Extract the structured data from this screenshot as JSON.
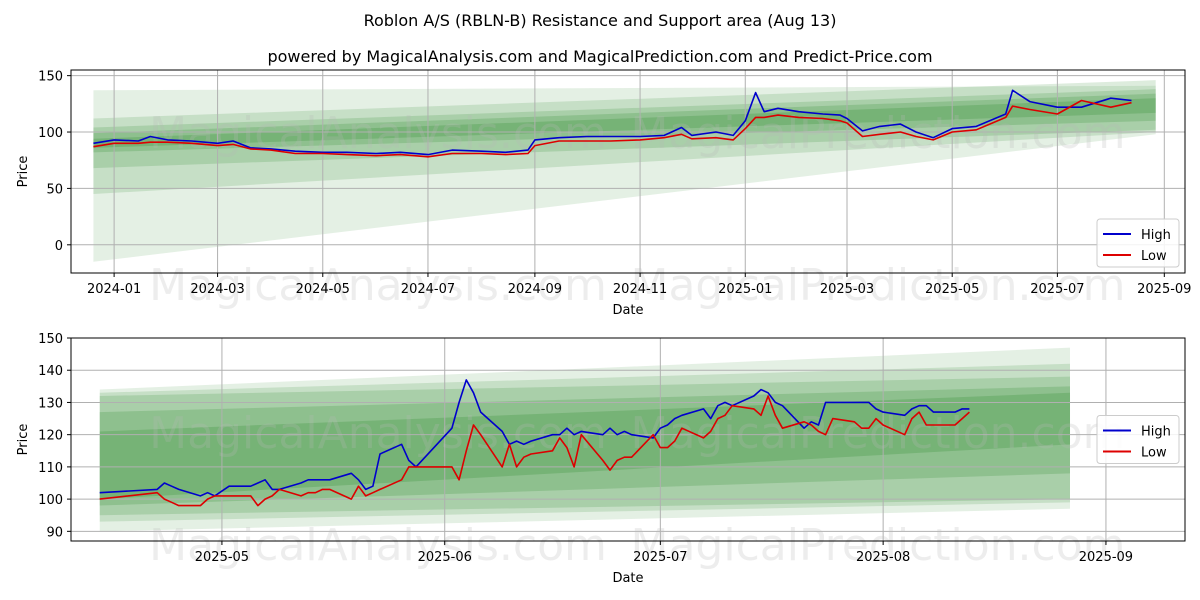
{
  "title": "Roblon A/S (RBLN-B) Resistance and Support area (Aug 13)",
  "subtitle": "powered by MagicalAnalysis.com and MagicalPrediction.com and Predict-Price.com",
  "watermarks": [
    "MagicalAnalysis.com",
    "MagicalPrediction.com"
  ],
  "colors": {
    "high": "#0000cc",
    "low": "#dd0000",
    "band": "#2e8b2e",
    "grid": "#b0b0b0"
  },
  "chart_data": [
    {
      "type": "line",
      "xlabel": "Date",
      "ylabel": "Price",
      "ylim": [
        -25,
        155
      ],
      "xlim": [
        "2023-12-07",
        "2025-09-13"
      ],
      "yticks": [
        0,
        50,
        100,
        150
      ],
      "xticks": [
        "2024-01",
        "2024-03",
        "2024-05",
        "2024-07",
        "2024-09",
        "2024-11",
        "2025-01",
        "2025-03",
        "2025-05",
        "2025-07",
        "2025-09"
      ],
      "grid": true,
      "legend": "bottom-right",
      "bands": [
        {
          "x": [
            "2023-12-20",
            "2025-08-27"
          ],
          "upper": [
            137,
            141
          ],
          "lower": [
            -15,
            98
          ]
        },
        {
          "x": [
            "2023-12-20",
            "2025-08-27"
          ],
          "upper": [
            112,
            146
          ],
          "lower": [
            45,
            100
          ]
        },
        {
          "x": [
            "2023-12-20",
            "2025-08-27"
          ],
          "upper": [
            104,
            138
          ],
          "lower": [
            68,
            102
          ]
        },
        {
          "x": [
            "2023-12-20",
            "2025-08-27"
          ],
          "upper": [
            99,
            134
          ],
          "lower": [
            82,
            110
          ]
        },
        {
          "x": [
            "2023-12-20",
            "2025-08-27"
          ],
          "upper": [
            94,
            130
          ],
          "lower": [
            86,
            117
          ]
        }
      ],
      "series": [
        {
          "name": "High",
          "x": [
            "2023-12-20",
            "2024-01-01",
            "2024-01-15",
            "2024-01-22",
            "2024-02-01",
            "2024-02-15",
            "2024-03-01",
            "2024-03-10",
            "2024-03-20",
            "2024-04-01",
            "2024-04-15",
            "2024-05-01",
            "2024-05-15",
            "2024-06-01",
            "2024-06-15",
            "2024-07-01",
            "2024-07-15",
            "2024-08-01",
            "2024-08-15",
            "2024-08-28",
            "2024-09-01",
            "2024-09-15",
            "2024-10-01",
            "2024-10-15",
            "2024-11-01",
            "2024-11-15",
            "2024-11-25",
            "2024-12-01",
            "2024-12-15",
            "2024-12-25",
            "2025-01-01",
            "2025-01-07",
            "2025-01-12",
            "2025-01-20",
            "2025-02-01",
            "2025-02-15",
            "2025-02-25",
            "2025-03-01",
            "2025-03-10",
            "2025-03-20",
            "2025-04-01",
            "2025-04-10",
            "2025-04-20",
            "2025-05-01",
            "2025-05-15",
            "2025-06-01",
            "2025-06-05",
            "2025-06-15",
            "2025-07-01",
            "2025-07-15",
            "2025-08-01",
            "2025-08-13"
          ],
          "values": [
            90,
            93,
            92,
            96,
            93,
            92,
            90,
            92,
            86,
            85,
            83,
            82,
            82,
            81,
            82,
            80,
            84,
            83,
            82,
            84,
            93,
            95,
            96,
            96,
            96,
            97,
            104,
            97,
            100,
            97,
            110,
            135,
            118,
            121,
            118,
            116,
            115,
            112,
            101,
            105,
            107,
            100,
            95,
            103,
            105,
            116,
            137,
            127,
            122,
            122,
            130,
            128
          ]
        },
        {
          "name": "Low",
          "x": [
            "2023-12-20",
            "2024-01-01",
            "2024-01-15",
            "2024-01-22",
            "2024-02-01",
            "2024-02-15",
            "2024-03-01",
            "2024-03-10",
            "2024-03-20",
            "2024-04-01",
            "2024-04-15",
            "2024-05-01",
            "2024-05-15",
            "2024-06-01",
            "2024-06-15",
            "2024-07-01",
            "2024-07-15",
            "2024-08-01",
            "2024-08-15",
            "2024-08-28",
            "2024-09-01",
            "2024-09-15",
            "2024-10-01",
            "2024-10-15",
            "2024-11-01",
            "2024-11-15",
            "2024-11-25",
            "2024-12-01",
            "2024-12-15",
            "2024-12-25",
            "2025-01-01",
            "2025-01-07",
            "2025-01-12",
            "2025-01-20",
            "2025-02-01",
            "2025-02-15",
            "2025-02-25",
            "2025-03-01",
            "2025-03-10",
            "2025-03-20",
            "2025-04-01",
            "2025-04-10",
            "2025-04-20",
            "2025-05-01",
            "2025-05-15",
            "2025-06-01",
            "2025-06-05",
            "2025-06-15",
            "2025-07-01",
            "2025-07-15",
            "2025-08-01",
            "2025-08-13"
          ],
          "values": [
            87,
            90,
            90,
            91,
            91,
            90,
            88,
            89,
            85,
            84,
            81,
            81,
            80,
            79,
            80,
            78,
            81,
            81,
            80,
            81,
            88,
            92,
            92,
            92,
            93,
            95,
            98,
            94,
            95,
            93,
            103,
            113,
            113,
            115,
            113,
            112,
            110,
            108,
            96,
            98,
            100,
            96,
            93,
            100,
            102,
            113,
            123,
            120,
            116,
            128,
            122,
            126
          ]
        }
      ]
    },
    {
      "type": "line",
      "xlabel": "Date",
      "ylabel": "Price",
      "ylim": [
        87,
        150
      ],
      "xlim": [
        "2025-04-10",
        "2025-09-12"
      ],
      "yticks": [
        90,
        100,
        110,
        120,
        130,
        140,
        150
      ],
      "xticks": [
        "2025-05",
        "2025-06",
        "2025-07",
        "2025-08",
        "2025-09"
      ],
      "grid": true,
      "legend": "center-right",
      "bands": [
        {
          "x": [
            "2025-04-14",
            "2025-08-27"
          ],
          "upper": [
            134,
            147
          ],
          "lower": [
            90,
            97
          ]
        },
        {
          "x": [
            "2025-04-14",
            "2025-08-27"
          ],
          "upper": [
            133,
            142
          ],
          "lower": [
            93,
            99
          ]
        },
        {
          "x": [
            "2025-04-14",
            "2025-08-27"
          ],
          "upper": [
            132,
            138
          ],
          "lower": [
            95,
            100
          ]
        },
        {
          "x": [
            "2025-04-14",
            "2025-08-27"
          ],
          "upper": [
            127,
            135
          ],
          "lower": [
            98,
            108
          ]
        },
        {
          "x": [
            "2025-04-14",
            "2025-08-27"
          ],
          "upper": [
            121,
            133
          ],
          "lower": [
            100,
            117
          ]
        }
      ],
      "series": [
        {
          "name": "High",
          "x": [
            "2025-04-14",
            "2025-04-22",
            "2025-04-23",
            "2025-04-24",
            "2025-04-25",
            "2025-04-28",
            "2025-04-29",
            "2025-04-30",
            "2025-05-02",
            "2025-05-05",
            "2025-05-06",
            "2025-05-07",
            "2025-05-08",
            "2025-05-09",
            "2025-05-12",
            "2025-05-13",
            "2025-05-14",
            "2025-05-15",
            "2025-05-16",
            "2025-05-19",
            "2025-05-20",
            "2025-05-21",
            "2025-05-22",
            "2025-05-23",
            "2025-05-26",
            "2025-05-27",
            "2025-05-28",
            "2025-06-02",
            "2025-06-03",
            "2025-06-04",
            "2025-06-05",
            "2025-06-06",
            "2025-06-09",
            "2025-06-10",
            "2025-06-11",
            "2025-06-12",
            "2025-06-13",
            "2025-06-16",
            "2025-06-17",
            "2025-06-18",
            "2025-06-19",
            "2025-06-20",
            "2025-06-23",
            "2025-06-24",
            "2025-06-25",
            "2025-06-26",
            "2025-06-27",
            "2025-06-30",
            "2025-07-01",
            "2025-07-02",
            "2025-07-03",
            "2025-07-04",
            "2025-07-07",
            "2025-07-08",
            "2025-07-09",
            "2025-07-10",
            "2025-07-11",
            "2025-07-14",
            "2025-07-15",
            "2025-07-16",
            "2025-07-17",
            "2025-07-18",
            "2025-07-21",
            "2025-07-22",
            "2025-07-23",
            "2025-07-24",
            "2025-07-25",
            "2025-07-28",
            "2025-07-29",
            "2025-07-30",
            "2025-07-31",
            "2025-08-01",
            "2025-08-04",
            "2025-08-05",
            "2025-08-06",
            "2025-08-07",
            "2025-08-08",
            "2025-08-11",
            "2025-08-12",
            "2025-08-13"
          ],
          "values": [
            102,
            103,
            105,
            104,
            103,
            101,
            102,
            101,
            104,
            104,
            105,
            106,
            103,
            103,
            105,
            106,
            106,
            106,
            106,
            108,
            106,
            103,
            104,
            114,
            117,
            112,
            110,
            122,
            130,
            137,
            133,
            127,
            121,
            117,
            118,
            117,
            118,
            120,
            120,
            122,
            120,
            121,
            120,
            122,
            120,
            121,
            120,
            119,
            122,
            123,
            125,
            126,
            128,
            125,
            129,
            130,
            129,
            132,
            134,
            133,
            130,
            129,
            122,
            124,
            123,
            130,
            130,
            130,
            130,
            130,
            128,
            127,
            126,
            128,
            129,
            129,
            127,
            127,
            128,
            128
          ]
        },
        {
          "name": "Low",
          "x": [
            "2025-04-14",
            "2025-04-22",
            "2025-04-23",
            "2025-04-24",
            "2025-04-25",
            "2025-04-28",
            "2025-04-29",
            "2025-04-30",
            "2025-05-02",
            "2025-05-05",
            "2025-05-06",
            "2025-05-07",
            "2025-05-08",
            "2025-05-09",
            "2025-05-12",
            "2025-05-13",
            "2025-05-14",
            "2025-05-15",
            "2025-05-16",
            "2025-05-19",
            "2025-05-20",
            "2025-05-21",
            "2025-05-22",
            "2025-05-23",
            "2025-05-26",
            "2025-05-27",
            "2025-05-28",
            "2025-06-02",
            "2025-06-03",
            "2025-06-04",
            "2025-06-05",
            "2025-06-06",
            "2025-06-09",
            "2025-06-10",
            "2025-06-11",
            "2025-06-12",
            "2025-06-13",
            "2025-06-16",
            "2025-06-17",
            "2025-06-18",
            "2025-06-19",
            "2025-06-20",
            "2025-06-23",
            "2025-06-24",
            "2025-06-25",
            "2025-06-26",
            "2025-06-27",
            "2025-06-30",
            "2025-07-01",
            "2025-07-02",
            "2025-07-03",
            "2025-07-04",
            "2025-07-07",
            "2025-07-08",
            "2025-07-09",
            "2025-07-10",
            "2025-07-11",
            "2025-07-14",
            "2025-07-15",
            "2025-07-16",
            "2025-07-17",
            "2025-07-18",
            "2025-07-21",
            "2025-07-22",
            "2025-07-23",
            "2025-07-24",
            "2025-07-25",
            "2025-07-28",
            "2025-07-29",
            "2025-07-30",
            "2025-07-31",
            "2025-08-01",
            "2025-08-04",
            "2025-08-05",
            "2025-08-06",
            "2025-08-07",
            "2025-08-08",
            "2025-08-11",
            "2025-08-12",
            "2025-08-13"
          ],
          "values": [
            100,
            102,
            100,
            99,
            98,
            98,
            100,
            101,
            101,
            101,
            98,
            100,
            101,
            103,
            101,
            102,
            102,
            103,
            103,
            100,
            104,
            101,
            102,
            103,
            106,
            110,
            110,
            110,
            106,
            115,
            123,
            120,
            110,
            117,
            110,
            113,
            114,
            115,
            119,
            116,
            110,
            120,
            112,
            109,
            112,
            113,
            113,
            120,
            116,
            116,
            118,
            122,
            119,
            121,
            125,
            126,
            129,
            128,
            126,
            132,
            126,
            122,
            124,
            123,
            121,
            120,
            125,
            124,
            122,
            122,
            125,
            123,
            120,
            125,
            127,
            123,
            123,
            123,
            125,
            127
          ]
        }
      ]
    }
  ]
}
